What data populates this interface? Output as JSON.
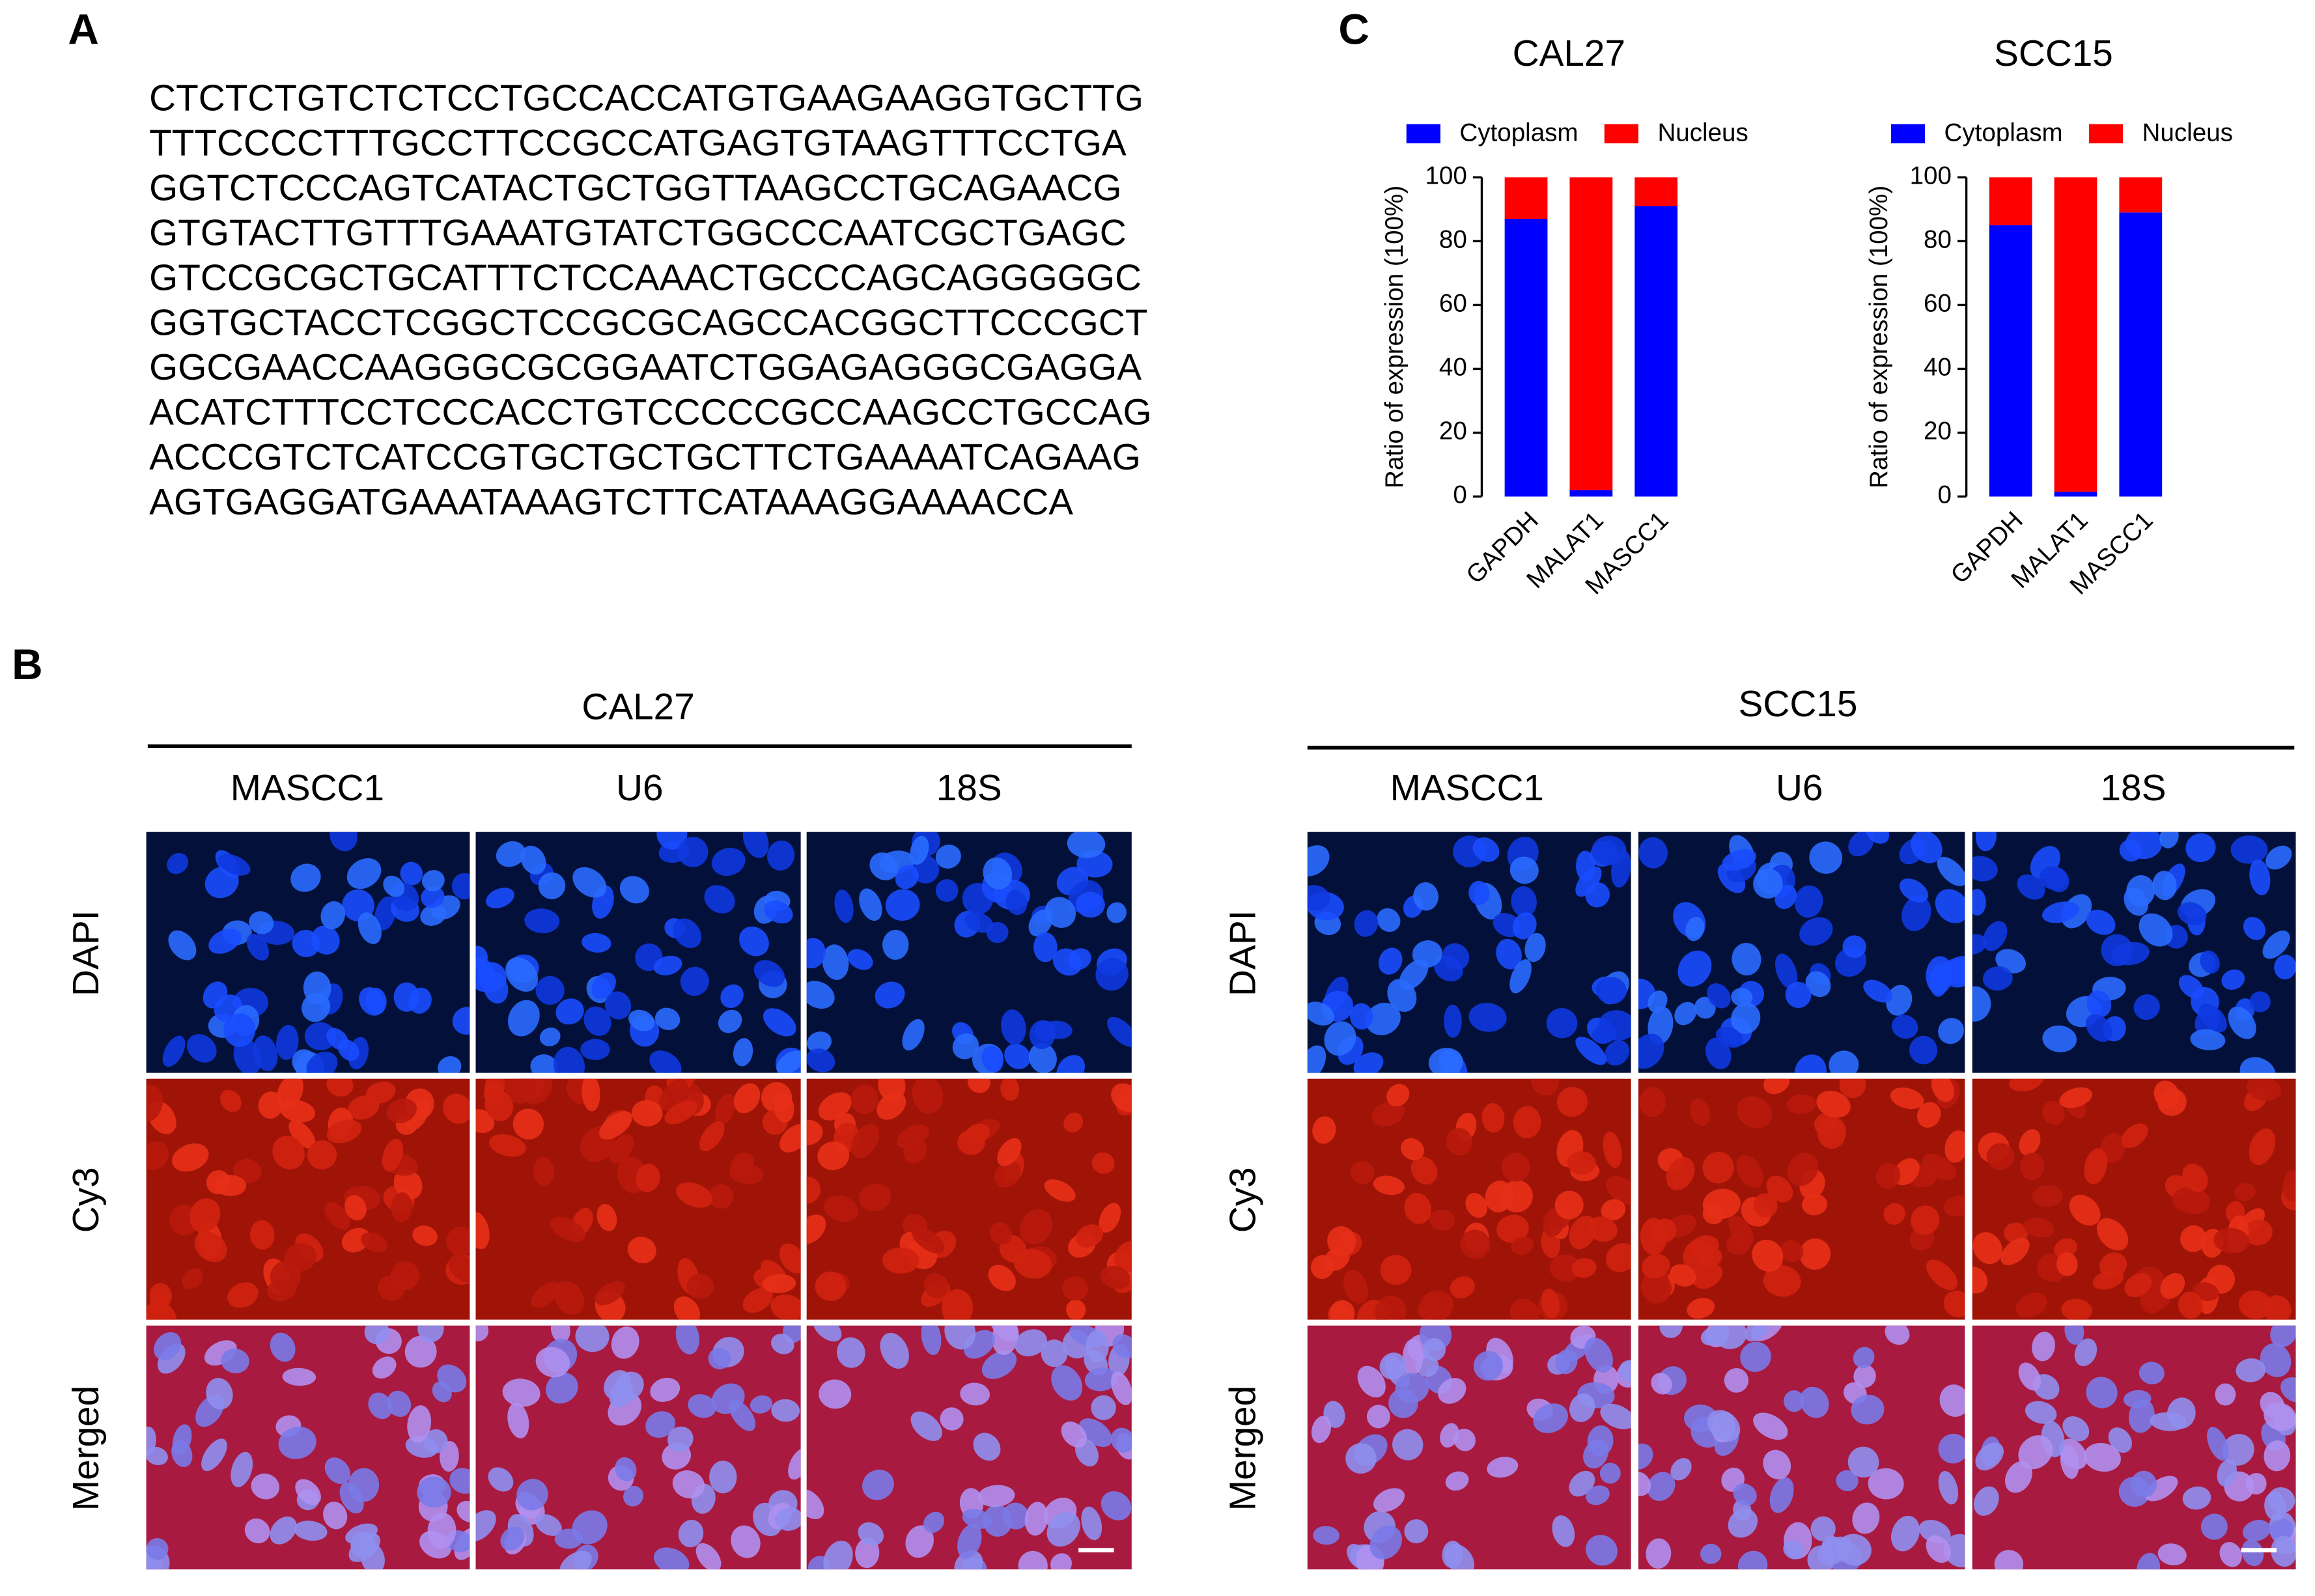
{
  "panel_a": {
    "label": "A",
    "sequence": [
      "CTCTCTGTCTCTCCTGCCACCATGTGAAGAAGGTGCTTG",
      "TTTCCCCTTTGCCTTCCGCCATGAGTGTAAGTTTCCTGA",
      "GGTCTCCCAGTCATACTGCTGGTTAAGCCTGCAGAACG",
      "GTGTACTTGTTTGAAATGTATCTGGCCCAATCGCTGAGC",
      "GTCCGCGCTGCATTTCTCCAAACTGCCCAGCAGGGGGC",
      "GGTGCTACCTCGGCTCCGCGCAGCCACGGCTTCCCGCT",
      "GGCGAACCAAGGGCGCGGAATCTGGAGAGGGCGAGGA",
      "ACATCTTTCCTCCCACCTGTCCCCCGCCAAGCCTGCCAG",
      "ACCCGTCTCATCCGTGCTGCTGCTTCTGAAAATCAGAAG",
      "AGTGAGGATGAAATAAAGTCTTCATAAAGGAAAACCA"
    ]
  },
  "panel_b": {
    "label": "B",
    "groups": [
      {
        "title": "CAL27",
        "columns": [
          "MASCC1",
          "U6",
          "18S"
        ],
        "rows": [
          "DAPI",
          "Cy3",
          "Merged"
        ]
      },
      {
        "title": "SCC15",
        "columns": [
          "MASCC1",
          "U6",
          "18S"
        ],
        "rows": [
          "DAPI",
          "Cy3",
          "Merged"
        ]
      }
    ]
  },
  "panel_c": {
    "label": "C"
  },
  "chart_data": [
    {
      "type": "stacked_bar",
      "title": "CAL27",
      "ylabel": "Ratio of expression (100%)",
      "categories": [
        "GAPDH",
        "MALAT1",
        "MASCC1"
      ],
      "series": [
        {
          "name": "Cytoplasm",
          "color": "#0000ff",
          "values": [
            87,
            2,
            91
          ]
        },
        {
          "name": "Nucleus",
          "color": "#ff0000",
          "values": [
            13,
            98,
            9
          ]
        }
      ],
      "ylim": [
        0,
        100
      ],
      "yticks": [
        0,
        20,
        40,
        60,
        80,
        100
      ],
      "legend": "top"
    },
    {
      "type": "stacked_bar",
      "title": "SCC15",
      "ylabel": "Ratio of expression (100%)",
      "categories": [
        "GAPDH",
        "MALAT1",
        "MASCC1"
      ],
      "series": [
        {
          "name": "Cytoplasm",
          "color": "#0000ff",
          "values": [
            85,
            1.5,
            89
          ]
        },
        {
          "name": "Nucleus",
          "color": "#ff0000",
          "values": [
            15,
            98.5,
            11
          ]
        }
      ],
      "ylim": [
        0,
        100
      ],
      "yticks": [
        0,
        20,
        40,
        60,
        80,
        100
      ],
      "legend": "top"
    }
  ]
}
